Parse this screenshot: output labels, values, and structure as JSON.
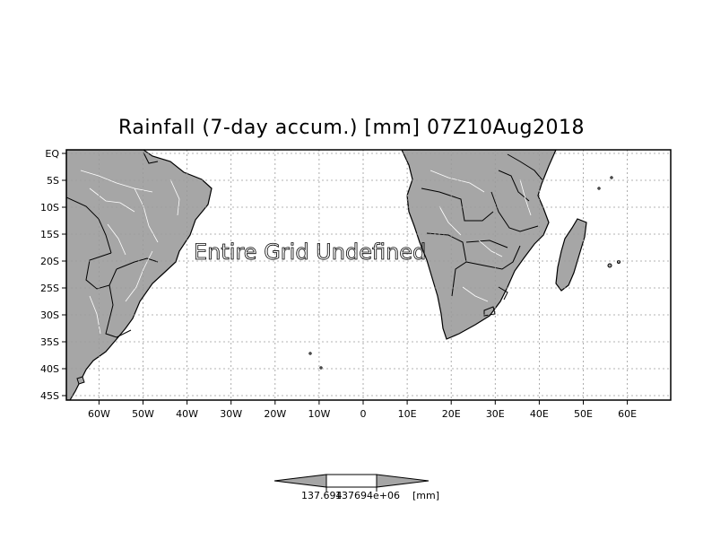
{
  "map": {
    "title": "Rainfall (7-day accum.) [mm] 07Z10Aug2018",
    "overlay_text": "Entire Grid Undefined",
    "lat_ticks": [
      "EQ",
      "5S",
      "10S",
      "15S",
      "20S",
      "25S",
      "30S",
      "35S",
      "40S",
      "45S"
    ],
    "lon_ticks": [
      "60W",
      "50W",
      "40W",
      "30W",
      "20W",
      "10W",
      "0",
      "10E",
      "20E",
      "30E",
      "40E",
      "50E",
      "60E"
    ],
    "colors": {
      "land": "#a6a6a6",
      "ocean": "#ffffff",
      "border": "#000000",
      "rivers": "#ffffff",
      "grid": "#9a9a9a"
    }
  },
  "colorbar": {
    "left_value": "137.694",
    "right_value": "137694e+06",
    "unit": "[mm]"
  }
}
